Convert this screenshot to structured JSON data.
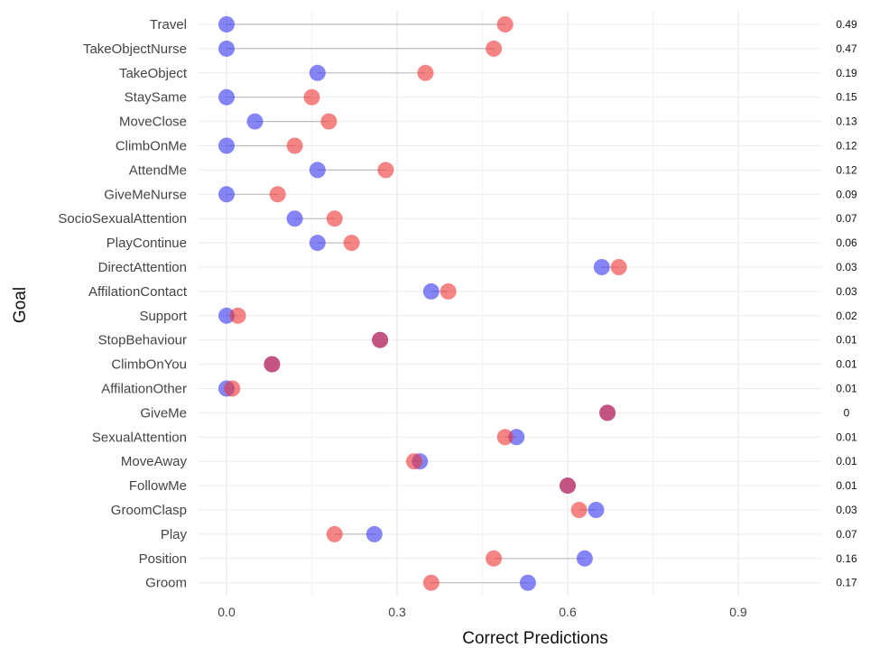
{
  "chart_data": {
    "type": "scatter",
    "subtype": "dumbbell",
    "xlabel": "Correct Predictions",
    "ylabel": "Goal",
    "xlim": [
      -0.07,
      1.06
    ],
    "x_ticks": [
      0.0,
      0.3,
      0.6,
      0.9
    ],
    "x_tick_labels": [
      "0.0",
      "0.3",
      "0.6",
      "0.9"
    ],
    "grid": true,
    "categories": [
      "Travel",
      "TakeObjectNurse",
      "TakeObject",
      "StaySame",
      "MoveClose",
      "ClimbOnMe",
      "AttendMe",
      "GiveMeNurse",
      "SocioSexualAttention",
      "PlayContinue",
      "DirectAttention",
      "AffilationContact",
      "Support",
      "StopBehaviour",
      "ClimbOnYou",
      "AffilationOther",
      "GiveMe",
      "SexualAttention",
      "MoveAway",
      "FollowMe",
      "GroomClasp",
      "Play",
      "Position",
      "Groom"
    ],
    "series": [
      {
        "color": "#3333ee",
        "values": [
          0.0,
          0.0,
          0.16,
          0.0,
          0.05,
          0.0,
          0.16,
          0.0,
          0.12,
          0.16,
          0.66,
          0.36,
          0.0,
          0.27,
          0.08,
          0.0,
          0.67,
          0.51,
          0.34,
          0.6,
          0.65,
          0.26,
          0.63,
          0.53
        ]
      },
      {
        "color": "#ee3333",
        "values": [
          0.49,
          0.47,
          0.35,
          0.15,
          0.18,
          0.12,
          0.28,
          0.09,
          0.19,
          0.22,
          0.69,
          0.39,
          0.02,
          0.27,
          0.08,
          0.01,
          0.67,
          0.49,
          0.33,
          0.6,
          0.62,
          0.19,
          0.47,
          0.36
        ]
      }
    ],
    "difference_labels": [
      "0.49",
      "0.47",
      "0.19",
      "0.15",
      "0.13",
      "0.12",
      "0.12",
      "0.09",
      "0.07",
      "0.06",
      "0.03",
      "0.03",
      "0.02",
      "0.01",
      "0.01",
      "0.01",
      "0",
      "0.01",
      "0.01",
      "0.01",
      "0.03",
      "0.07",
      "0.16",
      "0.17"
    ]
  }
}
